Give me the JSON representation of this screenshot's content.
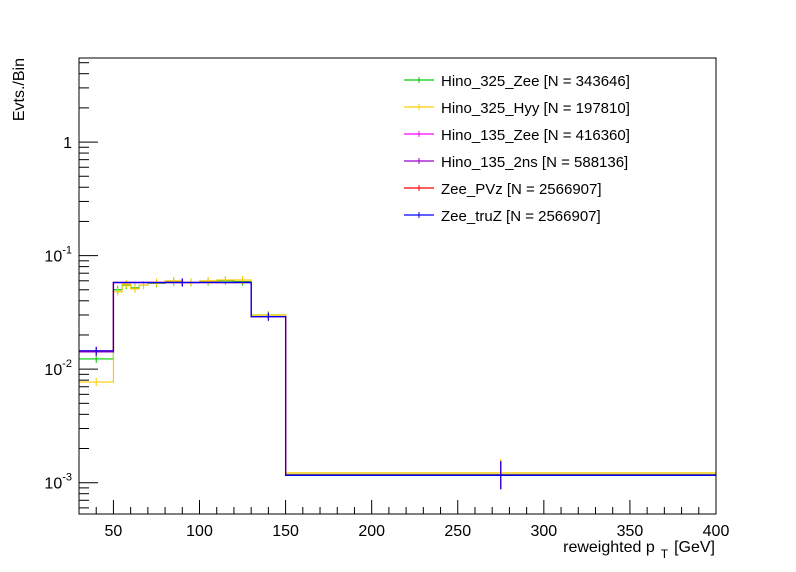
{
  "chart_data": {
    "type": "line",
    "title": "",
    "ylabel": "Evts./Bin",
    "xlabel_main": "reweighted p",
    "xlabel_sub": "T",
    "xlabel_unit": "[GeV]",
    "xlim": [
      30,
      400
    ],
    "ylim": [
      0.00053,
      5.5
    ],
    "yscale": "log",
    "grid": false,
    "legend_position": "top-right",
    "x_ticks": [
      "50",
      "100",
      "150",
      "200",
      "250",
      "300",
      "350",
      "400"
    ],
    "y_ticks": [
      {
        "base": "10",
        "exp": "-3",
        "value": 0.001
      },
      {
        "base": "10",
        "exp": "-2",
        "value": 0.01
      },
      {
        "base": "10",
        "exp": "-1",
        "value": 0.1
      },
      {
        "base": "1",
        "exp": "",
        "value": 1
      }
    ],
    "series": [
      {
        "name": "Hino_325_Zee [N = 343646]",
        "color": "#00cc00",
        "bins": [
          {
            "x0": 30,
            "x1": 50,
            "y": 0.0123
          },
          {
            "x0": 50,
            "x1": 55,
            "y": 0.05
          },
          {
            "x0": 55,
            "x1": 60,
            "y": 0.055
          },
          {
            "x0": 60,
            "x1": 65,
            "y": 0.052
          },
          {
            "x0": 65,
            "x1": 70,
            "y": 0.055
          },
          {
            "x0": 70,
            "x1": 80,
            "y": 0.057
          },
          {
            "x0": 80,
            "x1": 90,
            "y": 0.059
          },
          {
            "x0": 90,
            "x1": 100,
            "y": 0.058
          },
          {
            "x0": 100,
            "x1": 110,
            "y": 0.059
          },
          {
            "x0": 110,
            "x1": 120,
            "y": 0.06
          },
          {
            "x0": 120,
            "x1": 130,
            "y": 0.059
          },
          {
            "x0": 130,
            "x1": 150,
            "y": 0.03
          },
          {
            "x0": 150,
            "x1": 400,
            "y": 0.00118
          }
        ]
      },
      {
        "name": "Hino_325_Hyy [N = 197810]",
        "color": "#ffcc00",
        "bins": [
          {
            "x0": 30,
            "x1": 50,
            "y": 0.0077
          },
          {
            "x0": 50,
            "x1": 55,
            "y": 0.048
          },
          {
            "x0": 55,
            "x1": 60,
            "y": 0.056
          },
          {
            "x0": 60,
            "x1": 65,
            "y": 0.051
          },
          {
            "x0": 65,
            "x1": 70,
            "y": 0.055
          },
          {
            "x0": 70,
            "x1": 80,
            "y": 0.058
          },
          {
            "x0": 80,
            "x1": 90,
            "y": 0.06
          },
          {
            "x0": 90,
            "x1": 100,
            "y": 0.058
          },
          {
            "x0": 100,
            "x1": 110,
            "y": 0.06
          },
          {
            "x0": 110,
            "x1": 120,
            "y": 0.061
          },
          {
            "x0": 120,
            "x1": 130,
            "y": 0.061
          },
          {
            "x0": 130,
            "x1": 150,
            "y": 0.03
          },
          {
            "x0": 150,
            "x1": 400,
            "y": 0.00122
          }
        ]
      },
      {
        "name": "Hino_135_Zee [N = 416360]",
        "color": "#ff00ff",
        "bins": [
          {
            "x0": 30,
            "x1": 50,
            "y": 0.0142
          },
          {
            "x0": 50,
            "x1": 130,
            "y": 0.058
          },
          {
            "x0": 130,
            "x1": 150,
            "y": 0.029
          },
          {
            "x0": 150,
            "x1": 400,
            "y": 0.00117
          }
        ]
      },
      {
        "name": "Hino_135_2ns [N = 588136]",
        "color": "#9900cc",
        "bins": [
          {
            "x0": 30,
            "x1": 50,
            "y": 0.0142
          },
          {
            "x0": 50,
            "x1": 130,
            "y": 0.058
          },
          {
            "x0": 130,
            "x1": 150,
            "y": 0.029
          },
          {
            "x0": 150,
            "x1": 400,
            "y": 0.00117
          }
        ]
      },
      {
        "name": "Zee_PVz [N = 2566907]",
        "color": "#ff0000",
        "bins": [
          {
            "x0": 30,
            "x1": 50,
            "y": 0.0145
          },
          {
            "x0": 50,
            "x1": 130,
            "y": 0.058
          },
          {
            "x0": 130,
            "x1": 150,
            "y": 0.029
          },
          {
            "x0": 150,
            "x1": 400,
            "y": 0.00116
          }
        ]
      },
      {
        "name": "Zee_truZ [N = 2566907]",
        "color": "#0000ff",
        "bins": [
          {
            "x0": 30,
            "x1": 50,
            "y": 0.0145
          },
          {
            "x0": 50,
            "x1": 130,
            "y": 0.058
          },
          {
            "x0": 130,
            "x1": 150,
            "y": 0.029
          },
          {
            "x0": 150,
            "x1": 400,
            "y": 0.00116
          }
        ]
      }
    ]
  }
}
